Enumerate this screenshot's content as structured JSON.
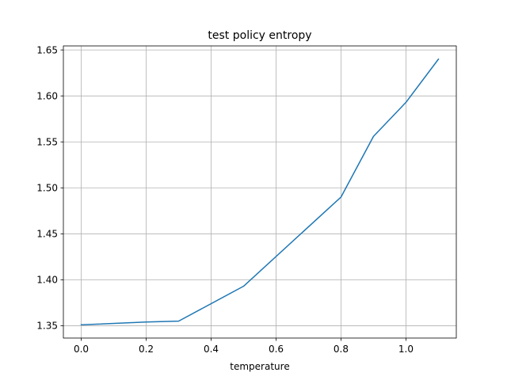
{
  "chart_data": {
    "type": "line",
    "title": "test policy entropy",
    "xlabel": "temperature",
    "ylabel": "",
    "x": [
      0.0,
      0.2,
      0.3,
      0.5,
      0.8,
      0.9,
      1.0,
      1.1
    ],
    "series": [
      {
        "values": [
          1.351,
          1.354,
          1.355,
          1.393,
          1.49,
          1.556,
          1.593,
          1.64
        ],
        "color": "#1f77b4"
      }
    ],
    "xlim": [
      -0.055,
      1.155
    ],
    "ylim": [
      1.3366,
      1.6544
    ],
    "xticks": [
      0.0,
      0.2,
      0.4,
      0.6,
      0.8,
      1.0
    ],
    "xtick_labels": [
      "0.0",
      "0.2",
      "0.4",
      "0.6",
      "0.8",
      "1.0"
    ],
    "yticks": [
      1.35,
      1.4,
      1.45,
      1.5,
      1.55,
      1.6,
      1.65
    ],
    "ytick_labels": [
      "1.35",
      "1.40",
      "1.45",
      "1.50",
      "1.55",
      "1.60",
      "1.65"
    ],
    "grid": true,
    "legend": "none"
  }
}
